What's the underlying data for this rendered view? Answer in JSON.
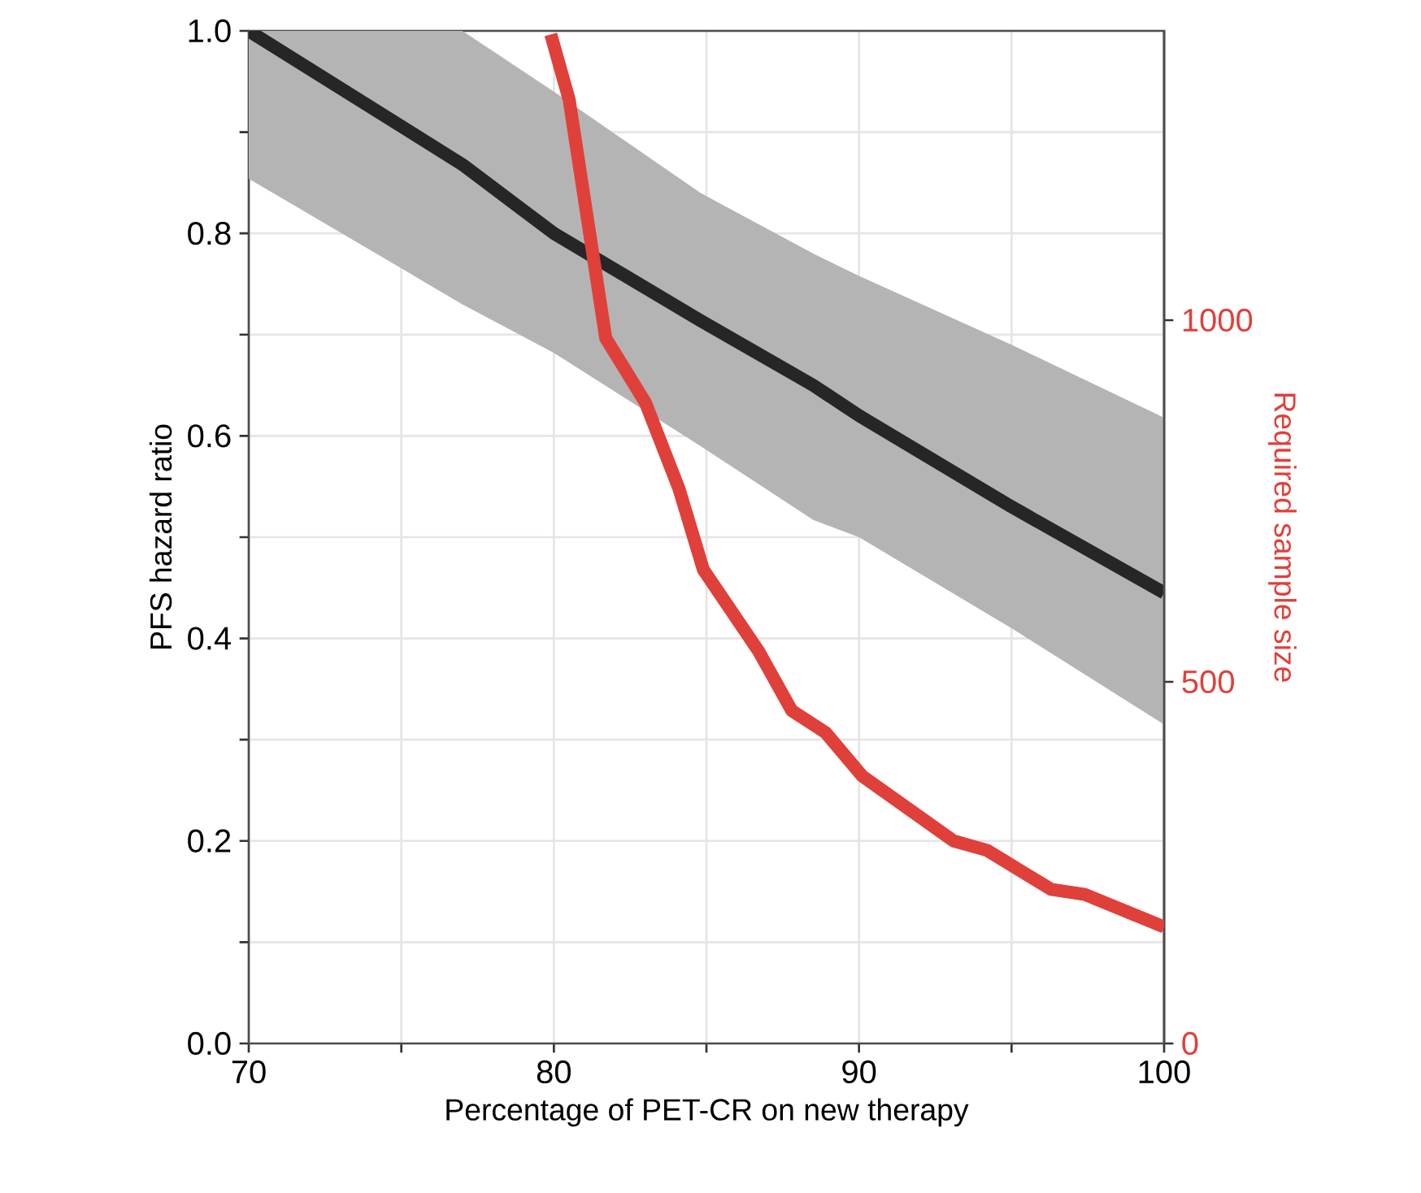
{
  "chart_data": {
    "type": "line",
    "xlabel": "Percentage of PET-CR on new therapy",
    "ylabel": "PFS hazard ratio",
    "y2label": "Required sample size",
    "xlim": [
      70,
      100
    ],
    "xticks": [
      70,
      {
        "value": 75,
        "label": null
      },
      80,
      {
        "value": 85,
        "label": null
      },
      90,
      {
        "value": 95,
        "label": null
      },
      100
    ],
    "ylim": [
      0,
      1.0
    ],
    "yticks": [
      {
        "value": 0,
        "label": "0.0"
      },
      {
        "value": 0.1,
        "label": null
      },
      0.2,
      {
        "value": 0.3,
        "label": null
      },
      0.4,
      {
        "value": 0.5,
        "label": null
      },
      0.6,
      {
        "value": 0.7,
        "label": null
      },
      0.8,
      {
        "value": 0.9,
        "label": null
      },
      {
        "value": 1.0,
        "label": "1.0"
      }
    ],
    "y2lim": [
      0,
      1400
    ],
    "y2ticks": [
      0,
      500,
      1000
    ],
    "grid": true,
    "marker": "none",
    "line_style": "solid",
    "series": [
      {
        "color": "#262626",
        "x": [
          70,
          77,
          80,
          84.8,
          88.5,
          90,
          95,
          100
        ],
        "values": [
          1.0,
          0.868,
          0.8,
          0.714,
          0.65,
          0.62,
          0.53,
          0.445
        ],
        "lower": [
          0.854,
          0.73,
          0.682,
          0.59,
          0.517,
          0.5,
          0.41,
          0.315
        ],
        "upper": [
          1.0,
          1.0,
          0.94,
          0.84,
          0.78,
          0.758,
          0.69,
          0.618
        ]
      },
      {
        "color": "#e0403a",
        "axis": "y2",
        "x": [
          79.9,
          80.5,
          81.7,
          83.0,
          84.1,
          84.9,
          86.7,
          87.8,
          88.9,
          90.1,
          93.1,
          94.2,
          96.3,
          97.4,
          100
        ],
        "values": [
          1395,
          1305,
          975,
          886,
          767,
          655,
          543,
          460,
          430,
          370,
          280,
          267,
          213,
          206,
          161
        ]
      }
    ]
  }
}
